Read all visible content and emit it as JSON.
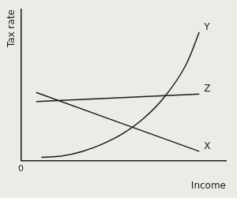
{
  "chart_data": {
    "type": "line",
    "x_label": "Income",
    "y_label": "Tax rate",
    "series": [
      {
        "name": "Y",
        "color": "#1a1a1a",
        "x": [
          1,
          2,
          3,
          4,
          5,
          6,
          7,
          8,
          8.7
        ],
        "values": [
          0.2,
          0.3,
          0.6,
          1.1,
          1.8,
          2.8,
          4.2,
          6.2,
          8.5
        ]
      },
      {
        "name": "Z",
        "color": "#1a1a1a",
        "x": [
          0.75,
          8.7
        ],
        "values": [
          3.9,
          4.4
        ]
      },
      {
        "name": "X",
        "color": "#1a1a1a",
        "x": [
          0.75,
          8.7
        ],
        "values": [
          4.5,
          0.6
        ]
      }
    ],
    "xlim": [
      0,
      10
    ],
    "ylim": [
      0,
      10
    ],
    "xticks": [
      0
    ],
    "yticks": [],
    "tick_labels": "x",
    "grid": false
  }
}
